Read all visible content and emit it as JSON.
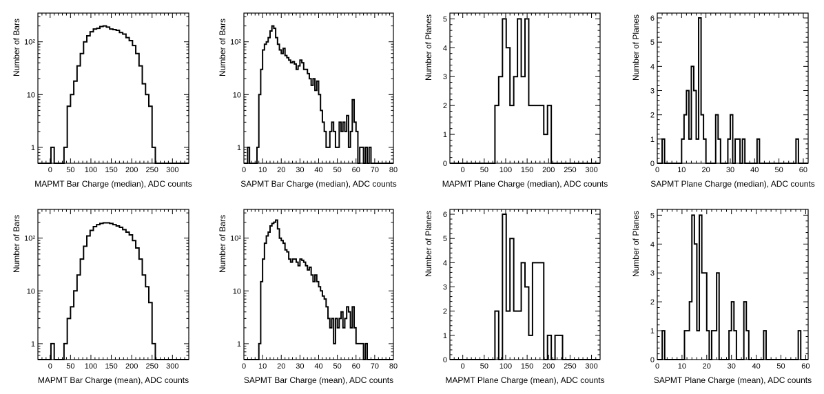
{
  "chart_data": [
    {
      "id": "mapmt-bar-median",
      "type": "histogram",
      "yscale": "log",
      "xlabel": "MAPMT Bar Charge (median), ADC counts",
      "ylabel": "Number of Bars",
      "xlim": [
        -30,
        340
      ],
      "ylim": [
        0.5,
        350
      ],
      "xticks": [
        0,
        50,
        100,
        150,
        200,
        250,
        300
      ],
      "xtick_labels": [
        "0",
        "50",
        "100",
        "150",
        "200",
        "250",
        "300"
      ],
      "yticks": [
        1,
        10,
        100
      ],
      "ytick_labels": [
        "1",
        "10",
        "10²"
      ],
      "bin_start": -30,
      "bin_width": 8,
      "counts": [
        0,
        0,
        0,
        0,
        1,
        0,
        0,
        0,
        1,
        6,
        10,
        18,
        35,
        60,
        100,
        130,
        155,
        175,
        180,
        195,
        200,
        190,
        175,
        170,
        165,
        150,
        140,
        120,
        105,
        85,
        60,
        35,
        16,
        10,
        6,
        1,
        0,
        0,
        0,
        0,
        0,
        0,
        0,
        0,
        0,
        0
      ]
    },
    {
      "id": "sapmt-bar-median",
      "type": "histogram",
      "yscale": "log",
      "xlabel": "SAPMT Bar Charge (median), ADC counts",
      "ylabel": "Number of Bars",
      "xlim": [
        0,
        80
      ],
      "ylim": [
        0.5,
        350
      ],
      "xticks": [
        0,
        10,
        20,
        30,
        40,
        50,
        60,
        70,
        80
      ],
      "xtick_labels": [
        "0",
        "10",
        "20",
        "30",
        "40",
        "50",
        "60",
        "70",
        "80"
      ],
      "yticks": [
        1,
        10,
        100
      ],
      "ytick_labels": [
        "1",
        "10",
        "10²"
      ],
      "bin_start": 0,
      "bin_width": 1,
      "counts": [
        0,
        0,
        1,
        0,
        0,
        0,
        0,
        1,
        10,
        30,
        70,
        90,
        100,
        120,
        160,
        200,
        180,
        120,
        90,
        70,
        60,
        75,
        55,
        50,
        45,
        40,
        42,
        38,
        30,
        35,
        45,
        40,
        30,
        30,
        25,
        20,
        15,
        20,
        12,
        18,
        10,
        5,
        3,
        2,
        1,
        1,
        2,
        3,
        2,
        1,
        1,
        3,
        2,
        3,
        2,
        4,
        1,
        2,
        8,
        3,
        2,
        0,
        1,
        1,
        0,
        1,
        0,
        1,
        0,
        0,
        0,
        0,
        0,
        0,
        0,
        0,
        0,
        0,
        0,
        0
      ]
    },
    {
      "id": "mapmt-plane-median",
      "type": "histogram",
      "yscale": "linear",
      "xlabel": "MAPMT Plane Charge (median), ADC counts",
      "ylabel": "Number of Planes",
      "xlim": [
        -30,
        320
      ],
      "ylim": [
        0,
        5.2
      ],
      "xticks": [
        0,
        50,
        100,
        150,
        200,
        250,
        300
      ],
      "xtick_labels": [
        "0",
        "50",
        "100",
        "150",
        "200",
        "250",
        "300"
      ],
      "yticks": [
        0,
        1,
        2,
        3,
        4,
        5
      ],
      "ytick_labels": [
        "0",
        "1",
        "2",
        "3",
        "4",
        "5"
      ],
      "bin_start": -30,
      "bin_width": 8.75,
      "counts": [
        0,
        0,
        0,
        0,
        0,
        0,
        0,
        0,
        0,
        0,
        0,
        0,
        2,
        3,
        5,
        4,
        2,
        3,
        5,
        3,
        5,
        2,
        2,
        2,
        2,
        1,
        2,
        0,
        0,
        0,
        0,
        0,
        0,
        0,
        0,
        0,
        0,
        0,
        0,
        0
      ]
    },
    {
      "id": "sapmt-plane-median",
      "type": "histogram",
      "yscale": "linear",
      "xlabel": "SAPMT Plane Charge (median), ADC counts",
      "ylabel": "Number of Planes",
      "xlim": [
        0,
        62
      ],
      "ylim": [
        0,
        6.2
      ],
      "xticks": [
        0,
        10,
        20,
        30,
        40,
        50,
        60
      ],
      "xtick_labels": [
        "0",
        "10",
        "20",
        "30",
        "40",
        "50",
        "60"
      ],
      "yticks": [
        0,
        1,
        2,
        3,
        4,
        5,
        6
      ],
      "ytick_labels": [
        "0",
        "1",
        "2",
        "3",
        "4",
        "5",
        "6"
      ],
      "bin_start": 0,
      "bin_width": 1,
      "counts": [
        0,
        0,
        1,
        0,
        0,
        0,
        0,
        0,
        0,
        0,
        1,
        2,
        3,
        1,
        4,
        3,
        1,
        6,
        2,
        1,
        0,
        0,
        0,
        0,
        2,
        1,
        0,
        0,
        0,
        1,
        2,
        0,
        1,
        1,
        0,
        1,
        0,
        0,
        0,
        0,
        0,
        1,
        0,
        0,
        0,
        0,
        0,
        0,
        0,
        0,
        0,
        0,
        0,
        0,
        0,
        0,
        0,
        1,
        0,
        0,
        0,
        0
      ]
    },
    {
      "id": "mapmt-bar-mean",
      "type": "histogram",
      "yscale": "log",
      "xlabel": "MAPMT Bar Charge (mean), ADC counts",
      "ylabel": "Number of Bars",
      "xlim": [
        -30,
        340
      ],
      "ylim": [
        0.5,
        350
      ],
      "xticks": [
        0,
        50,
        100,
        150,
        200,
        250,
        300
      ],
      "xtick_labels": [
        "0",
        "50",
        "100",
        "150",
        "200",
        "250",
        "300"
      ],
      "yticks": [
        1,
        10,
        100
      ],
      "ytick_labels": [
        "1",
        "10",
        "10²"
      ],
      "bin_start": -30,
      "bin_width": 8,
      "counts": [
        0,
        0,
        0,
        0,
        1,
        0,
        0,
        0,
        1,
        3,
        5,
        10,
        20,
        40,
        70,
        110,
        140,
        165,
        180,
        190,
        195,
        195,
        190,
        180,
        170,
        160,
        145,
        130,
        115,
        90,
        65,
        40,
        20,
        12,
        6,
        1,
        0,
        0,
        0,
        0,
        0,
        0,
        0,
        0,
        0,
        0
      ]
    },
    {
      "id": "sapmt-bar-mean",
      "type": "histogram",
      "yscale": "log",
      "xlabel": "SAPMT Bar Charge (mean), ADC counts",
      "ylabel": "Number of Bars",
      "xlim": [
        0,
        80
      ],
      "ylim": [
        0.5,
        350
      ],
      "xticks": [
        0,
        10,
        20,
        30,
        40,
        50,
        60,
        70,
        80
      ],
      "xtick_labels": [
        "0",
        "10",
        "20",
        "30",
        "40",
        "50",
        "60",
        "70",
        "80"
      ],
      "yticks": [
        1,
        10,
        100
      ],
      "ytick_labels": [
        "1",
        "10",
        "10²"
      ],
      "bin_start": 0,
      "bin_width": 1,
      "counts": [
        0,
        0,
        0,
        0,
        0,
        0,
        0,
        0,
        1,
        15,
        40,
        80,
        110,
        130,
        170,
        190,
        200,
        220,
        150,
        100,
        90,
        80,
        60,
        55,
        40,
        35,
        40,
        40,
        35,
        30,
        40,
        38,
        35,
        30,
        25,
        28,
        20,
        15,
        20,
        15,
        12,
        10,
        8,
        7,
        5,
        3,
        2,
        3,
        1,
        3,
        2,
        3,
        4,
        2,
        3,
        5,
        4,
        2,
        5,
        2,
        1,
        1,
        1,
        1,
        0,
        1,
        0,
        0,
        0,
        0,
        0,
        0,
        0,
        0,
        0,
        0,
        0,
        0,
        0,
        0
      ]
    },
    {
      "id": "mapmt-plane-mean",
      "type": "histogram",
      "yscale": "linear",
      "xlabel": "MAPMT Plane Charge (mean), ADC counts",
      "ylabel": "Number of Planes",
      "xlim": [
        -30,
        320
      ],
      "ylim": [
        0,
        6.2
      ],
      "xticks": [
        0,
        50,
        100,
        150,
        200,
        250,
        300
      ],
      "xtick_labels": [
        "0",
        "50",
        "100",
        "150",
        "200",
        "250",
        "300"
      ],
      "yticks": [
        0,
        1,
        2,
        3,
        4,
        5,
        6
      ],
      "ytick_labels": [
        "0",
        "1",
        "2",
        "3",
        "4",
        "5",
        "6"
      ],
      "bin_start": -30,
      "bin_width": 8.75,
      "counts": [
        0,
        0,
        0,
        0,
        0,
        0,
        0,
        0,
        0,
        0,
        0,
        0,
        2,
        0,
        6,
        2,
        5,
        2,
        2,
        4,
        3,
        1,
        4,
        4,
        4,
        0,
        1,
        0,
        1,
        1,
        0,
        0,
        0,
        0,
        0,
        0,
        0,
        0,
        0,
        0
      ]
    },
    {
      "id": "sapmt-plane-mean",
      "type": "histogram",
      "yscale": "linear",
      "xlabel": "SAPMT Plane Charge (mean), ADC counts",
      "ylabel": "Number of Planes",
      "xlim": [
        0,
        61
      ],
      "ylim": [
        0,
        5.2
      ],
      "xticks": [
        0,
        10,
        20,
        30,
        40,
        50,
        60
      ],
      "xtick_labels": [
        "0",
        "10",
        "20",
        "30",
        "40",
        "50",
        "60"
      ],
      "yticks": [
        0,
        1,
        2,
        3,
        4,
        5
      ],
      "ytick_labels": [
        "0",
        "1",
        "2",
        "3",
        "4",
        "5"
      ],
      "bin_start": 0,
      "bin_width": 1,
      "counts": [
        0,
        0,
        1,
        0,
        0,
        0,
        0,
        0,
        0,
        0,
        0,
        1,
        1,
        2,
        5,
        4,
        1,
        5,
        3,
        3,
        1,
        0,
        1,
        1,
        3,
        0,
        0,
        0,
        0,
        1,
        2,
        1,
        0,
        0,
        0,
        2,
        1,
        0,
        0,
        0,
        0,
        0,
        0,
        1,
        0,
        0,
        0,
        0,
        0,
        0,
        0,
        0,
        0,
        0,
        0,
        0,
        0,
        1,
        0,
        0,
        0
      ]
    }
  ]
}
